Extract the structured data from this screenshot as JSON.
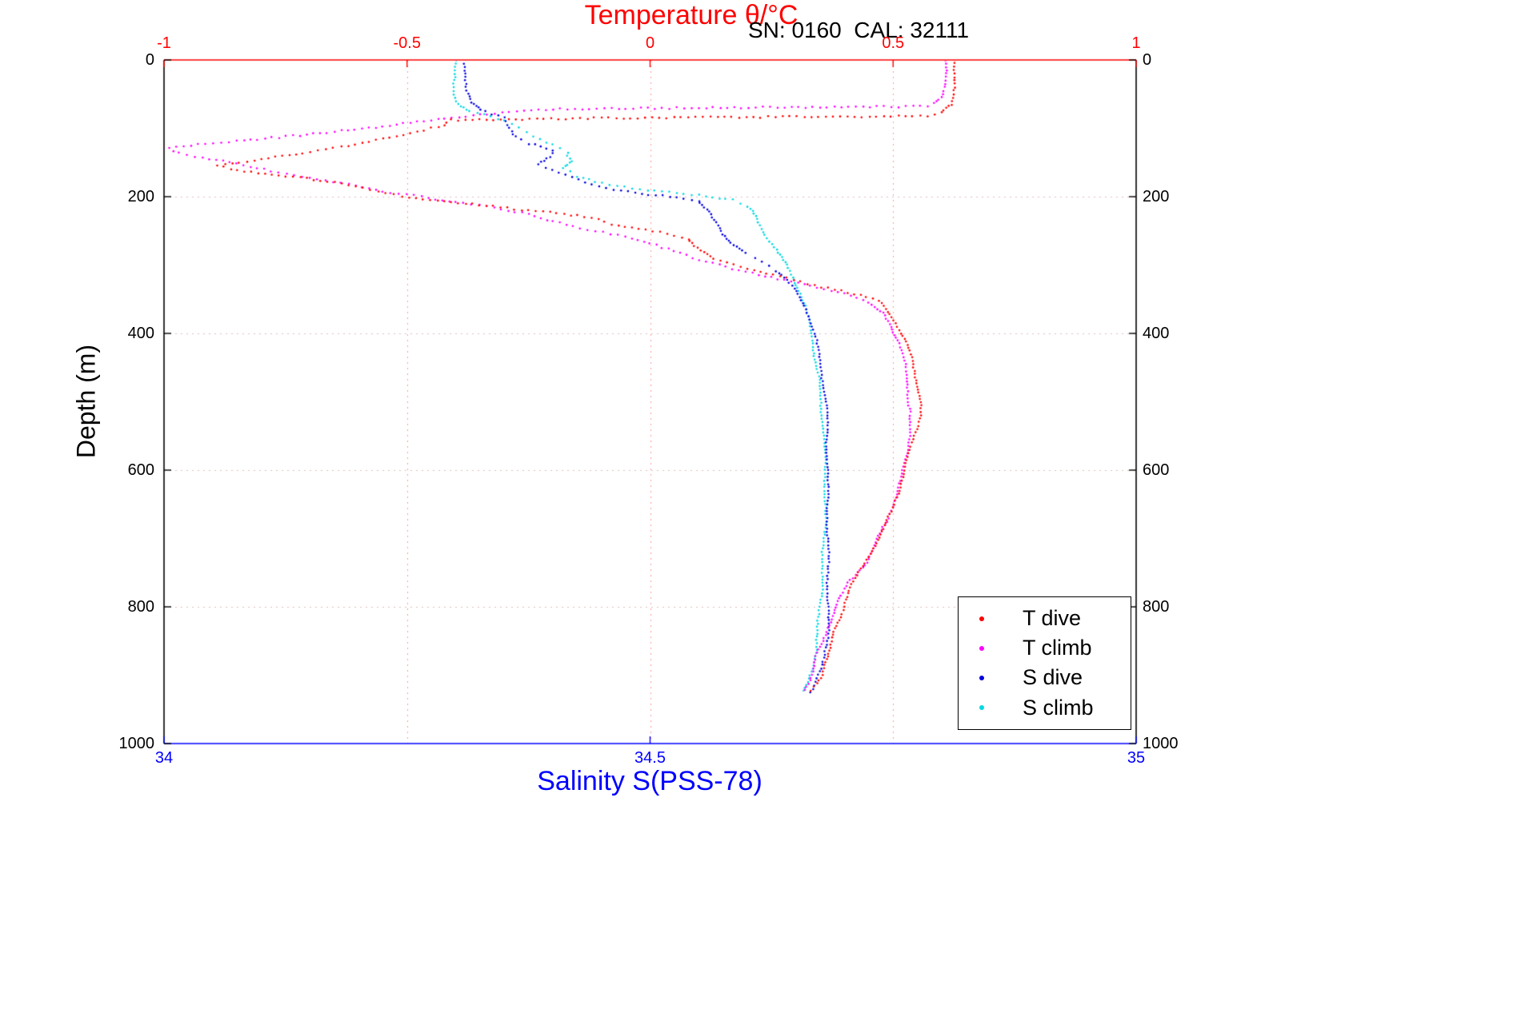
{
  "chart_data": {
    "type": "scatter",
    "description": "Glider CTD temperature and salinity profiles versus depth, dive and climb casts",
    "annotation": "SN: 0160  CAL: 32111",
    "x_axes": {
      "temperature": {
        "label": "Temperature θ/°C",
        "position": "top",
        "color": "#ff0000",
        "range": [
          -1,
          1
        ],
        "ticks": [
          -1,
          -0.5,
          0,
          0.5,
          1
        ]
      },
      "salinity": {
        "label": "Salinity S(PSS-78)",
        "position": "bottom",
        "color": "#0000ff",
        "range": [
          34,
          35
        ],
        "ticks": [
          34,
          34.5,
          35
        ]
      }
    },
    "y_axis": {
      "label": "Depth (m)",
      "range": [
        0,
        1000
      ],
      "ticks": [
        0,
        200,
        400,
        600,
        800,
        1000
      ],
      "reversed": true,
      "mirrored": true,
      "color": "#000000"
    },
    "grid": {
      "style": "dotted",
      "vertical_at_temperature": [
        -0.5,
        0,
        0.5
      ],
      "horizontal_at_depth": [
        200,
        400,
        600,
        800
      ]
    },
    "legend_position": "bottom-right",
    "series": [
      {
        "name": "T dive",
        "axis": "temperature",
        "color": "#ff0000",
        "marker": "dot",
        "points": [
          [
            0.63,
            0
          ],
          [
            0.63,
            40
          ],
          [
            0.62,
            65
          ],
          [
            0.6,
            76
          ],
          [
            0.57,
            82
          ],
          [
            -0.1,
            85
          ],
          [
            -0.41,
            88
          ],
          [
            -0.42,
            95
          ],
          [
            -0.48,
            105
          ],
          [
            -0.55,
            115
          ],
          [
            -0.62,
            125
          ],
          [
            -0.7,
            135
          ],
          [
            -0.8,
            145
          ],
          [
            -0.89,
            154
          ],
          [
            -0.85,
            162
          ],
          [
            -0.72,
            172
          ],
          [
            -0.62,
            182
          ],
          [
            -0.56,
            192
          ],
          [
            -0.51,
            200
          ],
          [
            -0.38,
            210
          ],
          [
            -0.25,
            220
          ],
          [
            -0.12,
            230
          ],
          [
            -0.08,
            240
          ],
          [
            0.02,
            252
          ],
          [
            0.08,
            262
          ],
          [
            0.1,
            275
          ],
          [
            0.13,
            290
          ],
          [
            0.2,
            305
          ],
          [
            0.28,
            318
          ],
          [
            0.34,
            330
          ],
          [
            0.42,
            342
          ],
          [
            0.47,
            352
          ],
          [
            0.49,
            368
          ],
          [
            0.505,
            385
          ],
          [
            0.515,
            400
          ],
          [
            0.53,
            425
          ],
          [
            0.54,
            450
          ],
          [
            0.55,
            478
          ],
          [
            0.555,
            505
          ],
          [
            0.55,
            535
          ],
          [
            0.54,
            560
          ],
          [
            0.53,
            585
          ],
          [
            0.52,
            610
          ],
          [
            0.51,
            640
          ],
          [
            0.5,
            660
          ],
          [
            0.48,
            690
          ],
          [
            0.46,
            715
          ],
          [
            0.44,
            740
          ],
          [
            0.42,
            762
          ],
          [
            0.4,
            790
          ],
          [
            0.39,
            815
          ],
          [
            0.375,
            840
          ],
          [
            0.37,
            860
          ],
          [
            0.355,
            885
          ],
          [
            0.35,
            900
          ],
          [
            0.34,
            912
          ],
          [
            0.33,
            922
          ]
        ]
      },
      {
        "name": "T climb",
        "axis": "temperature",
        "color": "#ff00ff",
        "marker": "dot",
        "points": [
          [
            0.605,
            0
          ],
          [
            0.605,
            40
          ],
          [
            0.6,
            55
          ],
          [
            0.585,
            63
          ],
          [
            0.57,
            68
          ],
          [
            0.1,
            70
          ],
          [
            -0.2,
            72
          ],
          [
            -0.35,
            80
          ],
          [
            -0.48,
            90
          ],
          [
            -0.55,
            97
          ],
          [
            -0.65,
            105
          ],
          [
            -0.75,
            112
          ],
          [
            -0.85,
            119
          ],
          [
            -0.93,
            124
          ],
          [
            -0.99,
            129
          ],
          [
            -0.97,
            136
          ],
          [
            -0.92,
            143
          ],
          [
            -0.85,
            152
          ],
          [
            -0.78,
            162
          ],
          [
            -0.7,
            172
          ],
          [
            -0.62,
            182
          ],
          [
            -0.55,
            192
          ],
          [
            -0.47,
            200
          ],
          [
            -0.4,
            208
          ],
          [
            -0.32,
            216
          ],
          [
            -0.25,
            226
          ],
          [
            -0.2,
            236
          ],
          [
            -0.13,
            248
          ],
          [
            -0.05,
            258
          ],
          [
            0,
            268
          ],
          [
            0.05,
            280
          ],
          [
            0.1,
            292
          ],
          [
            0.17,
            305
          ],
          [
            0.25,
            318
          ],
          [
            0.33,
            330
          ],
          [
            0.4,
            342
          ],
          [
            0.45,
            355
          ],
          [
            0.48,
            370
          ],
          [
            0.5,
            390
          ],
          [
            0.515,
            415
          ],
          [
            0.525,
            445
          ],
          [
            0.53,
            480
          ],
          [
            0.535,
            515
          ],
          [
            0.53,
            550
          ],
          [
            0.525,
            580
          ],
          [
            0.515,
            610
          ],
          [
            0.5,
            645
          ],
          [
            0.485,
            675
          ],
          [
            0.465,
            705
          ],
          [
            0.445,
            735
          ],
          [
            0.41,
            765
          ],
          [
            0.39,
            792
          ],
          [
            0.375,
            818
          ],
          [
            0.36,
            845
          ],
          [
            0.345,
            872
          ],
          [
            0.335,
            895
          ],
          [
            0.325,
            912
          ],
          [
            0.315,
            922
          ]
        ]
      },
      {
        "name": "S dive",
        "axis": "salinity",
        "color": "#0000e0",
        "marker": "dot",
        "points": [
          [
            34.31,
            0
          ],
          [
            34.31,
            45
          ],
          [
            34.315,
            62
          ],
          [
            34.325,
            72
          ],
          [
            34.35,
            85
          ],
          [
            34.355,
            100
          ],
          [
            34.36,
            112
          ],
          [
            34.375,
            122
          ],
          [
            34.4,
            132
          ],
          [
            34.395,
            142
          ],
          [
            34.385,
            152
          ],
          [
            34.4,
            162
          ],
          [
            34.42,
            172
          ],
          [
            34.44,
            182
          ],
          [
            34.47,
            192
          ],
          [
            34.52,
            200
          ],
          [
            34.55,
            207
          ],
          [
            34.56,
            218
          ],
          [
            34.565,
            230
          ],
          [
            34.57,
            242
          ],
          [
            34.575,
            255
          ],
          [
            34.585,
            268
          ],
          [
            34.6,
            282
          ],
          [
            34.615,
            295
          ],
          [
            34.63,
            308
          ],
          [
            34.64,
            322
          ],
          [
            34.65,
            338
          ],
          [
            34.658,
            355
          ],
          [
            34.663,
            375
          ],
          [
            34.668,
            400
          ],
          [
            34.672,
            430
          ],
          [
            34.676,
            460
          ],
          [
            34.679,
            495
          ],
          [
            34.681,
            530
          ],
          [
            34.682,
            570
          ],
          [
            34.683,
            615
          ],
          [
            34.684,
            660
          ],
          [
            34.684,
            710
          ],
          [
            34.684,
            760
          ],
          [
            34.683,
            810
          ],
          [
            34.682,
            850
          ],
          [
            34.678,
            880
          ],
          [
            34.672,
            900
          ],
          [
            34.667,
            915
          ],
          [
            34.663,
            925
          ]
        ]
      },
      {
        "name": "S climb",
        "axis": "salinity",
        "color": "#00d8e2",
        "marker": "dot",
        "points": [
          [
            34.3,
            0
          ],
          [
            34.3,
            50
          ],
          [
            34.305,
            65
          ],
          [
            34.315,
            75
          ],
          [
            34.35,
            88
          ],
          [
            34.365,
            100
          ],
          [
            34.38,
            112
          ],
          [
            34.4,
            124
          ],
          [
            34.415,
            136
          ],
          [
            34.42,
            148
          ],
          [
            34.41,
            158
          ],
          [
            34.425,
            170
          ],
          [
            34.45,
            180
          ],
          [
            34.49,
            190
          ],
          [
            34.55,
            198
          ],
          [
            34.585,
            205
          ],
          [
            34.6,
            215
          ],
          [
            34.608,
            228
          ],
          [
            34.613,
            242
          ],
          [
            34.618,
            256
          ],
          [
            34.625,
            270
          ],
          [
            34.633,
            285
          ],
          [
            34.64,
            300
          ],
          [
            34.648,
            318
          ],
          [
            34.655,
            338
          ],
          [
            34.66,
            360
          ],
          [
            34.665,
            385
          ],
          [
            34.669,
            415
          ],
          [
            34.672,
            448
          ],
          [
            34.675,
            482
          ],
          [
            34.677,
            520
          ],
          [
            34.678,
            560
          ],
          [
            34.679,
            605
          ],
          [
            34.679,
            655
          ],
          [
            34.678,
            710
          ],
          [
            34.677,
            765
          ],
          [
            34.675,
            815
          ],
          [
            34.672,
            858
          ],
          [
            34.668,
            890
          ],
          [
            34.664,
            910
          ],
          [
            34.66,
            922
          ]
        ]
      }
    ]
  }
}
